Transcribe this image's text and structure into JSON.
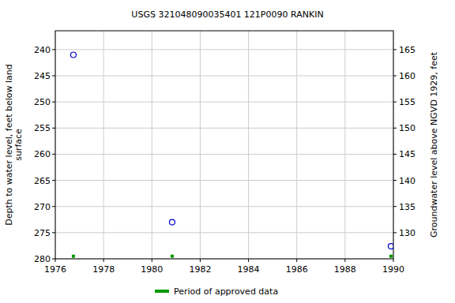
{
  "chart_data": {
    "type": "scatter",
    "title": "USGS 321048090035401 121P0090  RANKIN",
    "ylabel": [
      "Depth to water level, feet below land",
      "surface"
    ],
    "y2label": "Groundwater level above NGVD 1929, feet",
    "xlim": [
      1976,
      1990
    ],
    "xticks": [
      1976,
      1978,
      1980,
      1982,
      1984,
      1986,
      1988,
      1990
    ],
    "ylim": [
      280,
      236.4
    ],
    "yticks": [
      240,
      245,
      250,
      255,
      260,
      265,
      270,
      275,
      280
    ],
    "y2lim": [
      125,
      168.6
    ],
    "y2ticks": [
      130,
      135,
      140,
      145,
      150,
      155,
      160,
      165
    ],
    "grid": true,
    "legend": "bottom",
    "series": [
      {
        "color": "#0000cc",
        "marker": "circle",
        "x": [
          1976.75,
          1980.84,
          1989.9
        ],
        "values": [
          241,
          273,
          277.6
        ]
      },
      {
        "name": "Period of approved data",
        "color": "#009900",
        "marker": "square",
        "x": [
          1976.75,
          1980.84,
          1989.9
        ],
        "values": [
          279.5,
          279.5,
          279.5
        ]
      }
    ]
  }
}
